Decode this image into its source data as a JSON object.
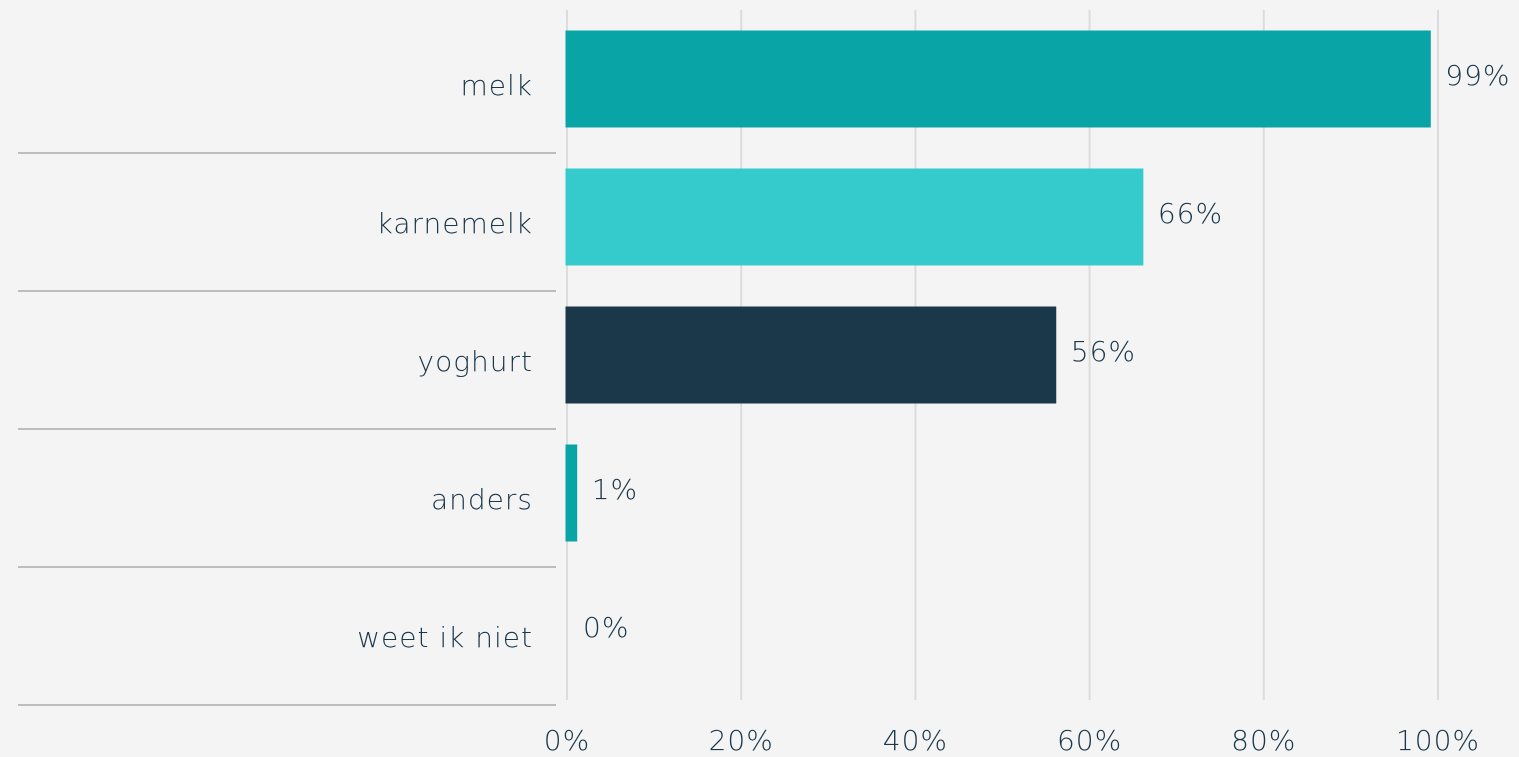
{
  "chart_data": {
    "type": "hbar",
    "categories": [
      "melk",
      "karnemelk",
      "yoghurt",
      "anders",
      "weet ik niet"
    ],
    "values": [
      99,
      66,
      56,
      1,
      0
    ],
    "value_labels": [
      "99%",
      "66%",
      "56%",
      "1%",
      "0%"
    ],
    "colors": [
      "#08a4a6",
      "#35cbcc",
      "#1b384b",
      "#08a4a6",
      "#888888"
    ],
    "xlim": [
      0,
      100
    ],
    "xticks": [
      {
        "value": 0,
        "label": "0%"
      },
      {
        "value": 20,
        "label": "20%"
      },
      {
        "value": 40,
        "label": "40%"
      },
      {
        "value": 60,
        "label": "60%"
      },
      {
        "value": 80,
        "label": "80%"
      },
      {
        "value": 100,
        "label": "100%"
      }
    ],
    "grid": true
  }
}
